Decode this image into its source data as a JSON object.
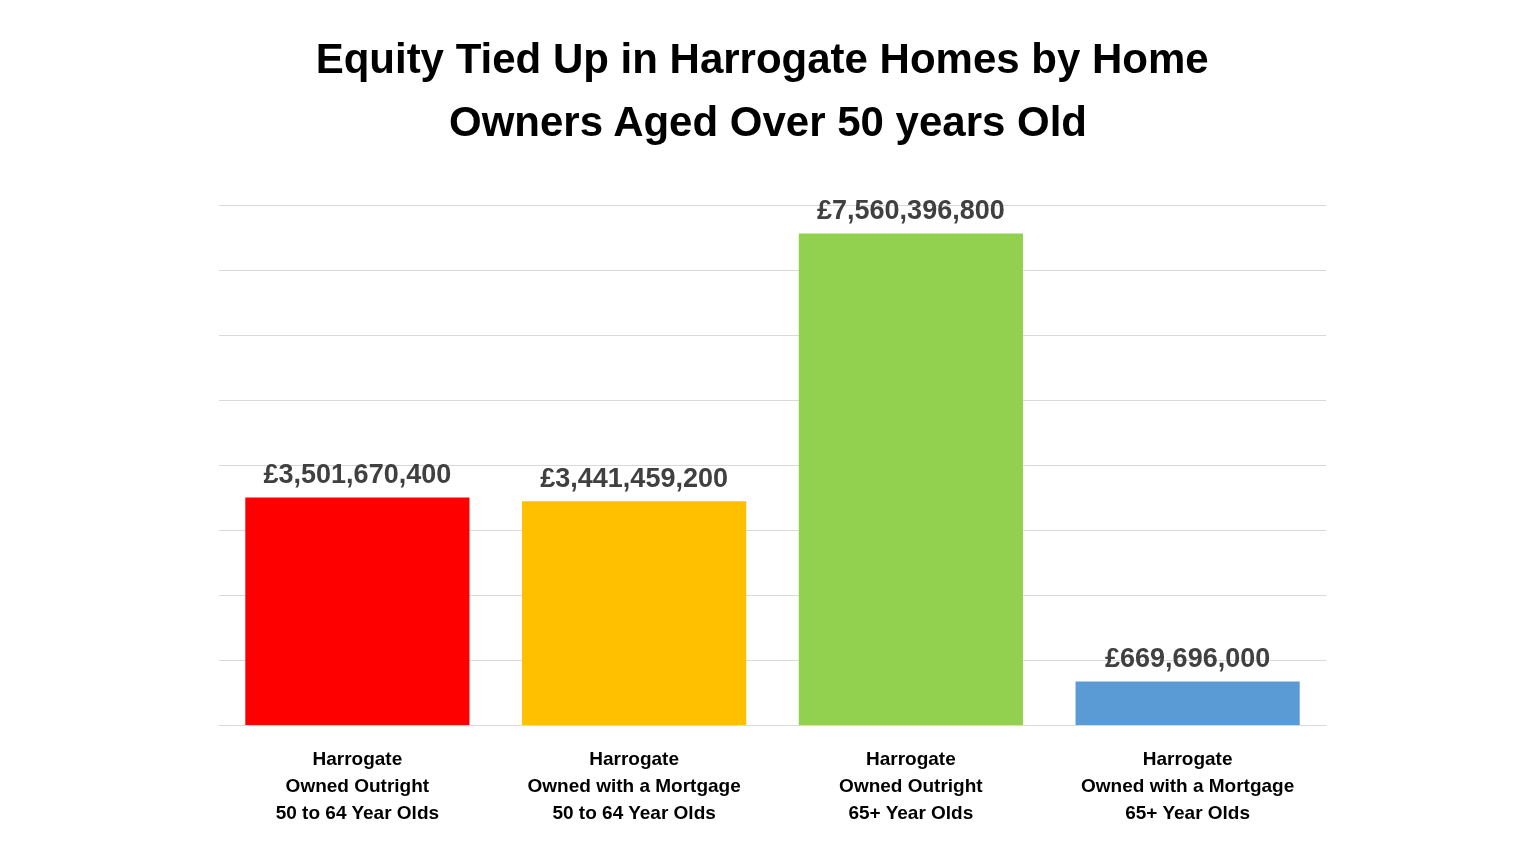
{
  "chart_data": {
    "type": "bar",
    "title": "Equity Tied Up in Harrogate Homes by Home Owners Aged Over 50 years Old",
    "categories": [
      "Harrogate\nOwned Outright\n50 to 64 Year Olds",
      "Harrogate\nOwned with a Mortgage\n50 to 64 Year Olds",
      "Harrogate\nOwned Outright\n65+ Year Olds",
      "Harrogate\nOwned with a Mortgage\n65+ Year Olds"
    ],
    "values": [
      3501670400,
      3441459200,
      7560396800,
      669696000
    ],
    "value_labels": [
      "£3,501,670,400",
      "£3,441,459,200",
      "£7,560,396,800",
      "£669,696,000"
    ],
    "colors": [
      "#ff0000",
      "#ffc000",
      "#92d050",
      "#5b9bd5"
    ],
    "ylim": [
      0,
      8000000000
    ],
    "yticks": [
      {
        "value": 0,
        "label": null
      },
      {
        "value": 1000000000,
        "label": null
      },
      {
        "value": 2000000000,
        "label": null
      },
      {
        "value": 3000000000,
        "label": null
      },
      {
        "value": 4000000000,
        "label": null
      },
      {
        "value": 5000000000,
        "label": null
      },
      {
        "value": 6000000000,
        "label": null
      },
      {
        "value": 7000000000,
        "label": null
      },
      {
        "value": 8000000000,
        "label": null
      }
    ],
    "grid": "y",
    "tick_labels": "x"
  }
}
